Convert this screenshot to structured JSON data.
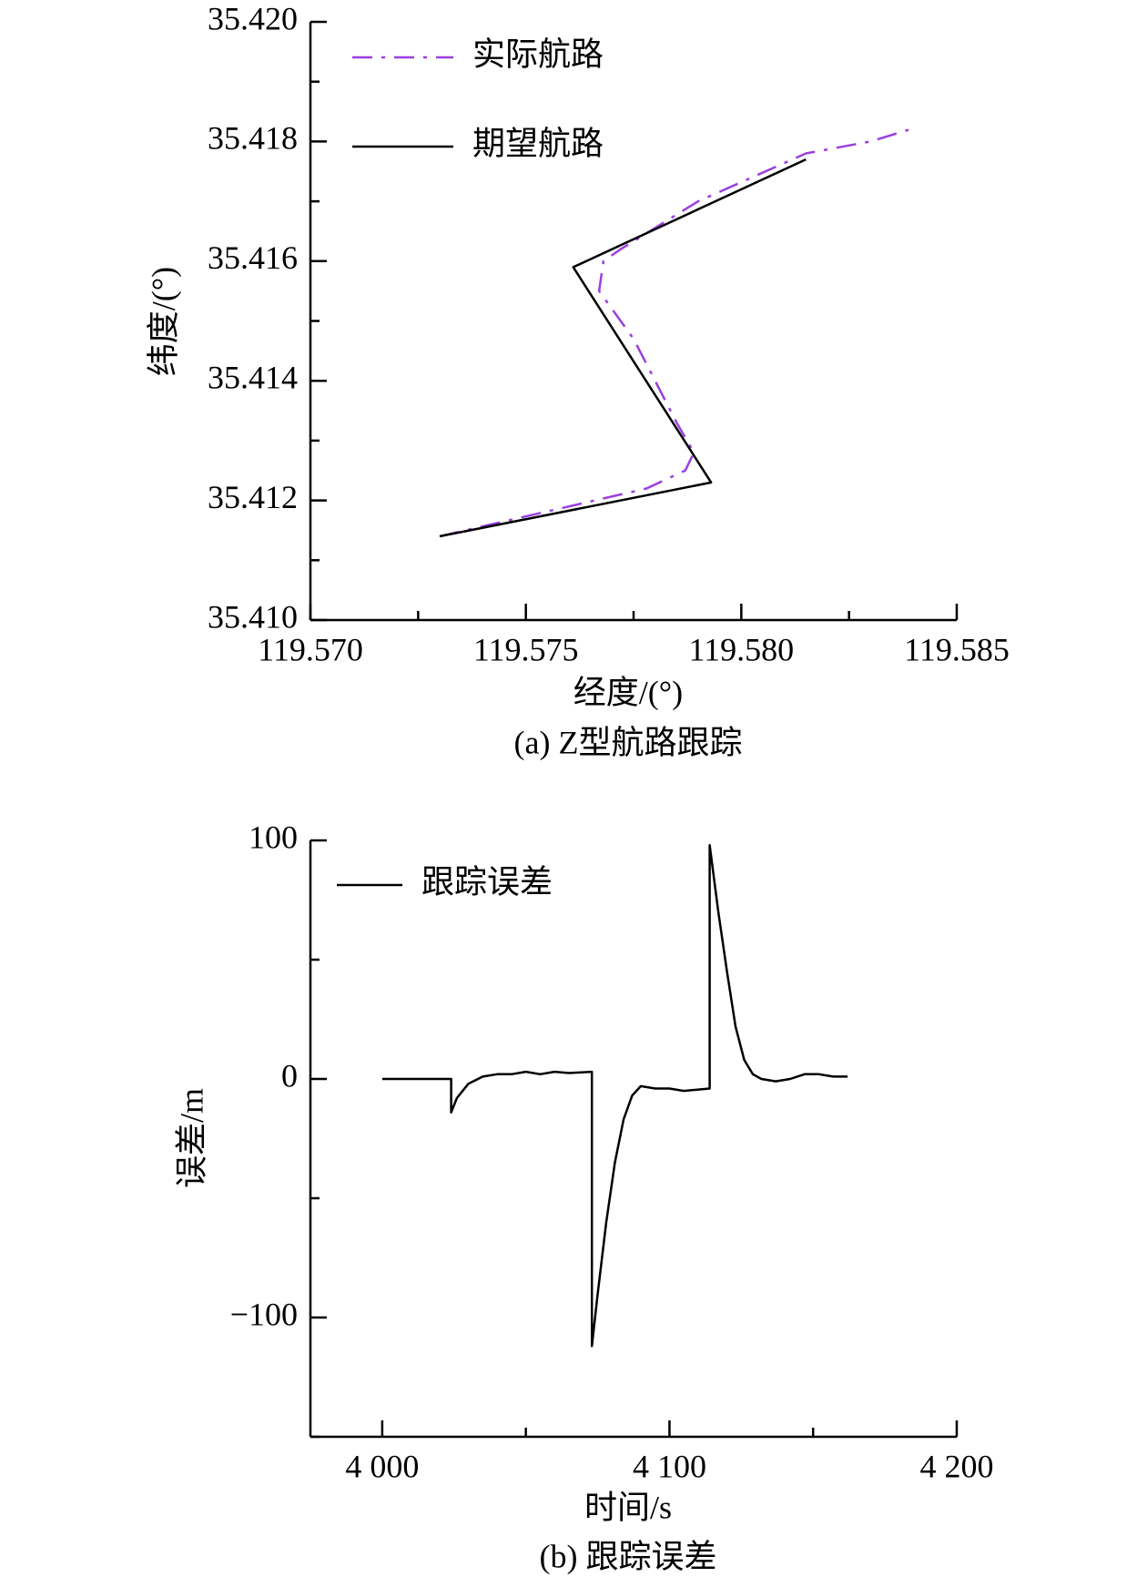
{
  "chart_data": [
    {
      "type": "line",
      "title": "(a) Z型航路跟踪",
      "x_label": "经度/(°)",
      "y_label": "纬度/(°)",
      "xlim": [
        119.57,
        119.585
      ],
      "xticks": [
        {
          "value": 119.57,
          "label": "119.570"
        },
        119.575,
        {
          "value": 119.58,
          "label": "119.580"
        },
        119.585
      ],
      "xminorticks": [
        119.5725,
        119.5775,
        119.5825
      ],
      "ylim": [
        35.41,
        35.42
      ],
      "yticks": [
        {
          "value": 35.41,
          "label": "35.410"
        },
        35.412,
        35.414,
        35.416,
        35.418,
        {
          "value": 35.42,
          "label": "35.420"
        }
      ],
      "yminorticks": [
        35.411,
        35.413,
        35.415,
        35.417,
        35.419
      ],
      "series": [
        {
          "name": "实际航路",
          "color": "#9b3fe0",
          "style": "dash-dot",
          "x": [
            119.573,
            119.576,
            119.5778,
            119.5787,
            119.5789,
            119.5785,
            119.5775,
            119.5767,
            119.5768,
            119.5772,
            119.579,
            119.5815,
            119.583,
            119.5839
          ],
          "values": [
            35.4114,
            35.4119,
            35.4122,
            35.4125,
            35.4128,
            35.4133,
            35.4147,
            35.4155,
            35.416,
            35.4162,
            35.417,
            35.4178,
            35.418,
            35.4182
          ]
        },
        {
          "name": "期望航路",
          "color": "#000000",
          "style": "solid",
          "x": [
            119.573,
            119.5793,
            119.5761,
            119.5815
          ],
          "values": [
            35.4114,
            35.4123,
            35.4159,
            35.4177
          ]
        }
      ]
    },
    {
      "type": "line",
      "title": "(b) 跟踪误差",
      "x_label": "时间/s",
      "y_label": "误差/m",
      "xlim": [
        3975,
        4200
      ],
      "xticks": [
        {
          "value": 4000,
          "label": "4 000"
        },
        {
          "value": 4100,
          "label": "4 100"
        },
        {
          "value": 4200,
          "label": "4 200"
        }
      ],
      "xminorticks": [
        4050,
        4150
      ],
      "ylim": [
        -150,
        100
      ],
      "yticks": [
        {
          "value": -100,
          "label": "−100"
        },
        0,
        100
      ],
      "yminorticks": [
        -150,
        -50,
        50
      ],
      "series": [
        {
          "name": "跟踪误差",
          "color": "#000000",
          "style": "solid",
          "x": [
            4000,
            4024,
            4024,
            4026,
            4030,
            4035,
            4040,
            4045,
            4050,
            4055,
            4060,
            4065,
            4073,
            4073,
            4075,
            4078,
            4081,
            4084,
            4087,
            4090,
            4095,
            4100,
            4105,
            4114,
            4114,
            4117,
            4120,
            4123,
            4126,
            4129,
            4132,
            4137,
            4142,
            4147,
            4152,
            4157,
            4162
          ],
          "values": [
            0,
            0,
            -14,
            -8,
            -2,
            1,
            2,
            2,
            3,
            2,
            3,
            2.5,
            3,
            -112,
            -90,
            -60,
            -35,
            -17,
            -7,
            -3,
            -4,
            -4,
            -5,
            -4,
            98,
            70,
            45,
            22,
            8,
            2,
            0,
            -1,
            0,
            2,
            2,
            1,
            1
          ]
        }
      ]
    }
  ]
}
